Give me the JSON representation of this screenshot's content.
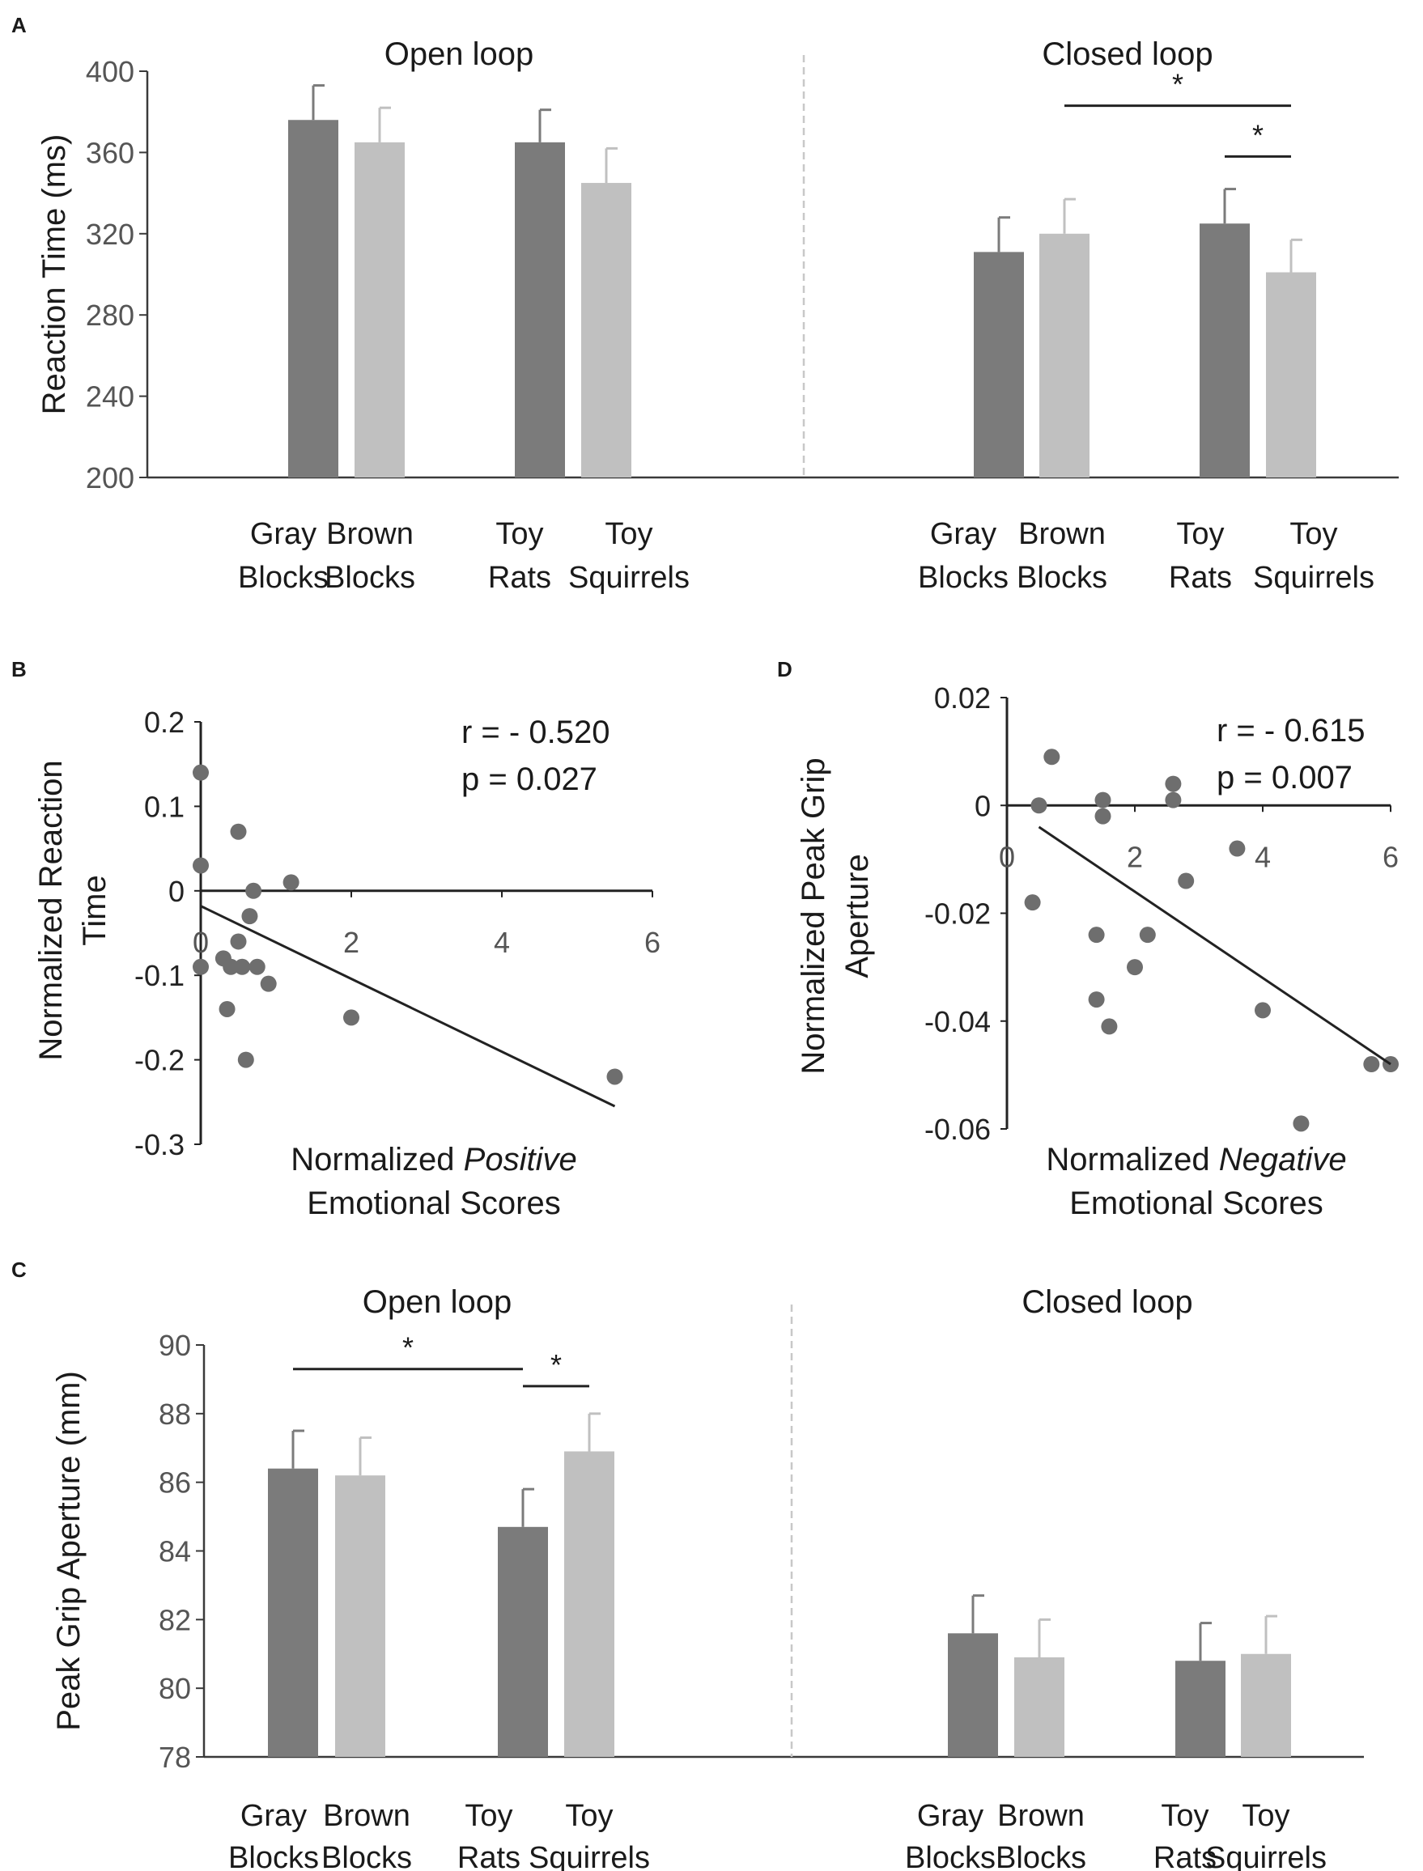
{
  "chart_data": [
    {
      "panel": "A",
      "type": "bar",
      "ylabel": "Reaction Time (ms)",
      "ylim": [
        200,
        400
      ],
      "yticks": [
        "400",
        "360",
        "320",
        "280",
        "240",
        "200"
      ],
      "groups": [
        {
          "title": "Open loop",
          "bars": [
            {
              "label": [
                "Gray",
                "Blocks"
              ],
              "value": 376,
              "error": 17,
              "shade": "dark"
            },
            {
              "label": [
                "Brown",
                "Blocks"
              ],
              "value": 365,
              "error": 17,
              "shade": "light"
            },
            {
              "label": [
                "Toy",
                "Rats"
              ],
              "value": 365,
              "error": 16,
              "shade": "dark"
            },
            {
              "label": [
                "Toy",
                "Squirrels"
              ],
              "value": 345,
              "error": 17,
              "shade": "light"
            }
          ],
          "significance": []
        },
        {
          "title": "Closed loop",
          "bars": [
            {
              "label": [
                "Gray",
                "Blocks"
              ],
              "value": 311,
              "error": 17,
              "shade": "dark"
            },
            {
              "label": [
                "Brown",
                "Blocks"
              ],
              "value": 320,
              "error": 17,
              "shade": "light"
            },
            {
              "label": [
                "Toy",
                "Rats"
              ],
              "value": 325,
              "error": 17,
              "shade": "dark"
            },
            {
              "label": [
                "Toy",
                "Squirrels"
              ],
              "value": 301,
              "error": 16,
              "shade": "light"
            }
          ],
          "significance": [
            {
              "from": 1,
              "to": 3,
              "value": 383,
              "symbol": "*"
            },
            {
              "from": 2,
              "to": 3,
              "value": 358,
              "symbol": "*"
            }
          ]
        }
      ]
    },
    {
      "panel": "B",
      "type": "scatter",
      "xlabel": "Normalized Positive Emotional Scores",
      "xlabel_parts": {
        "line1_pre": "Normalized ",
        "line1_em": "Positive",
        "line2": "Emotional Scores"
      },
      "ylabel": [
        "Normalized Reaction",
        "Time"
      ],
      "xlim": [
        0,
        6
      ],
      "ylim": [
        -0.3,
        0.2
      ],
      "xticks": [
        "0",
        "2",
        "4",
        "6"
      ],
      "yticks": [
        "0.2",
        "0.1",
        "0",
        "-0.1",
        "-0.2",
        "-0.3"
      ],
      "stats": {
        "r": "r = - 0.520",
        "p": "p = 0.027"
      },
      "points": [
        [
          0.0,
          0.14
        ],
        [
          0.0,
          0.03
        ],
        [
          0.0,
          -0.09
        ],
        [
          0.3,
          -0.08
        ],
        [
          0.4,
          -0.09
        ],
        [
          0.5,
          0.07
        ],
        [
          0.5,
          -0.06
        ],
        [
          0.55,
          -0.09
        ],
        [
          0.6,
          -0.2
        ],
        [
          0.65,
          -0.03
        ],
        [
          0.7,
          0.0
        ],
        [
          0.75,
          -0.09
        ],
        [
          0.9,
          -0.11
        ],
        [
          0.35,
          -0.14
        ],
        [
          1.2,
          0.01
        ],
        [
          2.0,
          -0.15
        ],
        [
          5.5,
          -0.22
        ]
      ],
      "fit": {
        "x": [
          0,
          5.5
        ],
        "y": [
          -0.018,
          -0.255
        ]
      }
    },
    {
      "panel": "D",
      "type": "scatter",
      "xlabel": "Normalized Negative Emotional Scores",
      "xlabel_parts": {
        "line1_pre": "Normalized ",
        "line1_em": "Negative",
        "line2": "Emotional Scores"
      },
      "ylabel": [
        "Normalized Peak Grip",
        "Aperture"
      ],
      "xlim": [
        0,
        6
      ],
      "ylim": [
        -0.06,
        0.02
      ],
      "xticks": [
        "0",
        "2",
        "4",
        "6"
      ],
      "yticks": [
        "0.02",
        "0",
        "-0.02",
        "-0.04",
        "-0.06"
      ],
      "stats": {
        "r": "r = - 0.615",
        "p": "p = 0.007"
      },
      "points": [
        [
          0.4,
          -0.018
        ],
        [
          0.5,
          0.0
        ],
        [
          0.7,
          0.009
        ],
        [
          1.4,
          -0.024
        ],
        [
          1.4,
          -0.036
        ],
        [
          1.5,
          0.001
        ],
        [
          1.5,
          -0.002
        ],
        [
          1.6,
          -0.041
        ],
        [
          2.0,
          -0.03
        ],
        [
          2.2,
          -0.024
        ],
        [
          2.6,
          0.004
        ],
        [
          2.6,
          0.001
        ],
        [
          2.8,
          -0.014
        ],
        [
          3.6,
          -0.008
        ],
        [
          4.0,
          -0.038
        ],
        [
          4.6,
          -0.059
        ],
        [
          5.7,
          -0.048
        ],
        [
          6.0,
          -0.048
        ]
      ],
      "fit": {
        "x": [
          0.5,
          6.0
        ],
        "y": [
          -0.004,
          -0.048
        ]
      }
    },
    {
      "panel": "C",
      "type": "bar",
      "ylabel": "Peak Grip Aperture (mm)",
      "ylim": [
        78,
        90
      ],
      "yticks": [
        "90",
        "88",
        "86",
        "84",
        "82",
        "80",
        "78"
      ],
      "groups": [
        {
          "title": "Open loop",
          "bars": [
            {
              "label": [
                "Gray",
                "Blocks"
              ],
              "value": 86.4,
              "error": 1.1,
              "shade": "dark"
            },
            {
              "label": [
                "Brown",
                "Blocks"
              ],
              "value": 86.2,
              "error": 1.1,
              "shade": "light"
            },
            {
              "label": [
                "Toy",
                "Rats"
              ],
              "value": 84.7,
              "error": 1.1,
              "shade": "dark"
            },
            {
              "label": [
                "Toy",
                "Squirrels"
              ],
              "value": 86.9,
              "error": 1.1,
              "shade": "light"
            }
          ],
          "significance": [
            {
              "from": 0,
              "to": 2,
              "value": 89.3,
              "symbol": "*"
            },
            {
              "from": 2,
              "to": 3,
              "value": 88.8,
              "symbol": "*"
            }
          ]
        },
        {
          "title": "Closed loop",
          "bars": [
            {
              "label": [
                "Gray",
                "Blocks"
              ],
              "value": 81.6,
              "error": 1.1,
              "shade": "dark"
            },
            {
              "label": [
                "Brown",
                "Blocks"
              ],
              "value": 80.9,
              "error": 1.1,
              "shade": "light"
            },
            {
              "label": [
                "Toy",
                "Rats"
              ],
              "value": 80.8,
              "error": 1.1,
              "shade": "dark"
            },
            {
              "label": [
                "Toy",
                "Squirrels"
              ],
              "value": 81.0,
              "error": 1.1,
              "shade": "light"
            }
          ],
          "significance": []
        }
      ]
    }
  ],
  "colors": {
    "dark_bar": "#7b7b7b",
    "light_bar": "#c0c0c0",
    "axis": "#3a3a3a",
    "point": "#6e6e6e",
    "divider": "#c8c8c8",
    "line": "#222222"
  }
}
